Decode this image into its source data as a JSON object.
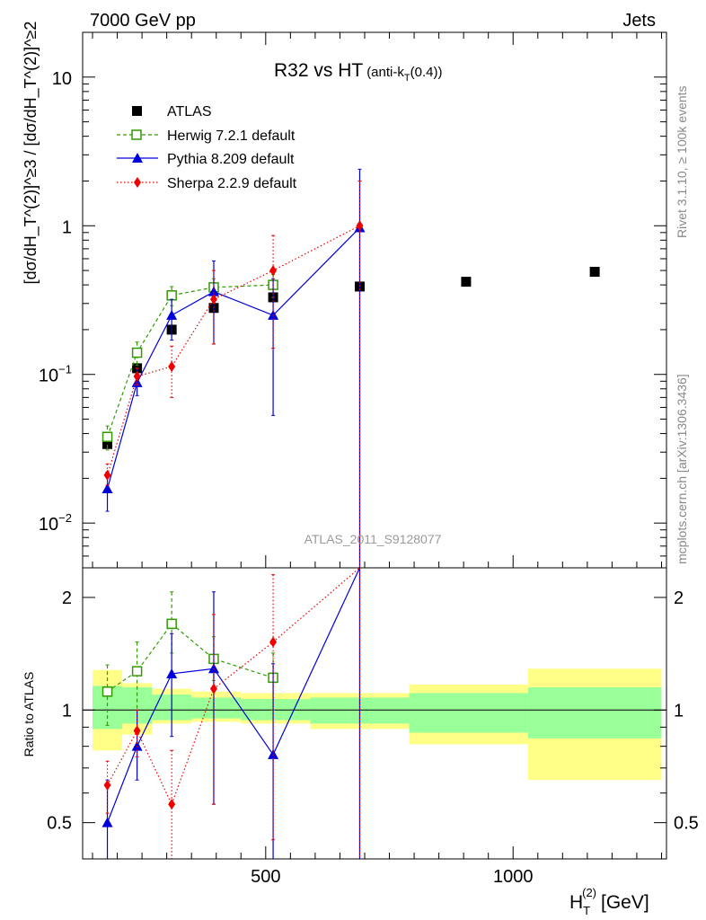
{
  "header": {
    "left": "7000 GeV pp",
    "right": "Jets"
  },
  "side_labels": {
    "rivet": "Rivet 3.1.10, ≥ 100k events",
    "mcplots": "mcplots.cern.ch [arXiv:1306.3436]"
  },
  "colors": {
    "atlas": "#000000",
    "herwig": "#339900",
    "pythia": "#0000dd",
    "sherpa": "#ee0000",
    "band_inner": "#99ff99",
    "band_outer": "#ffff88"
  },
  "chart_data": [
    {
      "type": "scatter",
      "title": "R32 vs HT",
      "title_sub": "(anti-k",
      "title_sub_T": "T",
      "title_sub_end": "(0.4))",
      "watermark": "ATLAS_2011_S9128077",
      "xlim": [
        130,
        1310
      ],
      "ylim": [
        0.005,
        20
      ],
      "yscale": "log",
      "ylabel": "[dσ/dH_T^(2)]^≥3 / [dσ/dH_T^(2)]^≥2",
      "yticks": [
        {
          "value": 0.01,
          "label": "10",
          "exp": "−2"
        },
        {
          "value": 0.1,
          "label": "10",
          "exp": "−1"
        },
        {
          "value": 1,
          "label": "1",
          "exp": ""
        },
        {
          "value": 10,
          "label": "10",
          "exp": ""
        }
      ],
      "legend": {
        "position": "top-left",
        "entries": [
          "ATLAS",
          "Herwig 7.2.1 default",
          "Pythia 8.209 default",
          "Sherpa 2.2.9 default"
        ]
      },
      "series": [
        {
          "name": "ATLAS",
          "style": "data",
          "x": [
            180,
            240,
            310,
            395,
            515,
            690,
            905,
            1165
          ],
          "y": [
            0.034,
            0.11,
            0.2,
            0.28,
            0.33,
            0.39,
            0.42,
            0.49
          ]
        },
        {
          "name": "Herwig 7.2.1 default",
          "style": "dashed",
          "x": [
            180,
            240,
            310,
            395,
            515
          ],
          "y": [
            0.038,
            0.14,
            0.34,
            0.385,
            0.4
          ],
          "lo": [
            0.031,
            0.115,
            0.29,
            0.34,
            0.33
          ],
          "hi": [
            0.045,
            0.165,
            0.39,
            0.44,
            0.47
          ]
        },
        {
          "name": "Pythia 8.209 default",
          "style": "solid",
          "x": [
            180,
            240,
            310,
            395,
            515,
            690
          ],
          "y": [
            0.017,
            0.088,
            0.25,
            0.36,
            0.25,
            0.97
          ],
          "lo": [
            0.012,
            0.072,
            0.17,
            0.16,
            0.053,
            0.005
          ],
          "hi": [
            0.022,
            0.11,
            0.32,
            0.58,
            0.44,
            2.4
          ]
        },
        {
          "name": "Sherpa 2.2.9 default",
          "style": "dotted",
          "x": [
            180,
            240,
            310,
            395,
            515,
            690
          ],
          "y": [
            0.021,
            0.097,
            0.113,
            0.32,
            0.5,
            1.0
          ],
          "lo": [
            0.018,
            0.085,
            0.07,
            0.16,
            0.15,
            0.005
          ],
          "hi": [
            0.025,
            0.11,
            0.155,
            0.5,
            0.86,
            2.0
          ]
        }
      ]
    },
    {
      "type": "scatter",
      "xlabel": "H",
      "xlabel_sub": "T",
      "xlabel_sup": "(2)",
      "xlabel_unit": "[GeV]",
      "ylabel": "Ratio to ATLAS",
      "xlim": [
        130,
        1310
      ],
      "ylim": [
        0.4,
        2.4
      ],
      "yscale": "log",
      "xticks": [
        500,
        1000
      ],
      "yticks": [
        {
          "value": 0.5,
          "label": "0.5"
        },
        {
          "value": 1,
          "label": "1"
        },
        {
          "value": 2,
          "label": "2"
        }
      ],
      "band_bins": [
        {
          "x0": 150,
          "x1": 210,
          "inner": [
            0.89,
            1.16
          ],
          "outer": [
            0.78,
            1.28
          ]
        },
        {
          "x0": 210,
          "x1": 270,
          "inner": [
            0.92,
            1.15
          ],
          "outer": [
            0.86,
            1.18
          ]
        },
        {
          "x0": 270,
          "x1": 350,
          "inner": [
            0.94,
            1.1
          ],
          "outer": [
            0.92,
            1.14
          ]
        },
        {
          "x0": 350,
          "x1": 450,
          "inner": [
            0.95,
            1.08
          ],
          "outer": [
            0.93,
            1.12
          ]
        },
        {
          "x0": 450,
          "x1": 590,
          "inner": [
            0.94,
            1.07
          ],
          "outer": [
            0.92,
            1.11
          ]
        },
        {
          "x0": 590,
          "x1": 790,
          "inner": [
            0.92,
            1.08
          ],
          "outer": [
            0.89,
            1.11
          ]
        },
        {
          "x0": 790,
          "x1": 1030,
          "inner": [
            0.87,
            1.11
          ],
          "outer": [
            0.81,
            1.17
          ]
        },
        {
          "x0": 1030,
          "x1": 1300,
          "inner": [
            0.84,
            1.15
          ],
          "outer": [
            0.65,
            1.29
          ]
        }
      ],
      "series": [
        {
          "name": "Herwig 7.2.1 default",
          "style": "dashed",
          "x": [
            180,
            240,
            310,
            395,
            515
          ],
          "y": [
            1.12,
            1.27,
            1.7,
            1.37,
            1.22
          ],
          "lo": [
            0.91,
            1.0,
            1.42,
            1.2,
            1.0
          ],
          "hi": [
            1.32,
            1.52,
            2.07,
            1.57,
            1.42
          ]
        },
        {
          "name": "Pythia 8.209 default",
          "style": "solid",
          "x": [
            180,
            240,
            310,
            395,
            515,
            690
          ],
          "y": [
            0.5,
            0.8,
            1.25,
            1.29,
            0.76,
            2.5
          ],
          "lo": [
            0.35,
            0.65,
            0.85,
            0.56,
            0.16,
            0.4
          ],
          "hi": [
            0.65,
            1.0,
            1.6,
            2.07,
            1.33,
            2.5
          ]
        },
        {
          "name": "Sherpa 2.2.9 default",
          "style": "dotted",
          "x": [
            180,
            240,
            310,
            395,
            515,
            690
          ],
          "y": [
            0.63,
            0.88,
            0.56,
            1.14,
            1.52,
            2.5
          ],
          "lo": [
            0.53,
            0.75,
            0.37,
            0.56,
            0.45,
            0.4
          ],
          "hi": [
            0.73,
            1.0,
            0.78,
            1.8,
            2.3,
            2.5
          ]
        }
      ]
    }
  ]
}
